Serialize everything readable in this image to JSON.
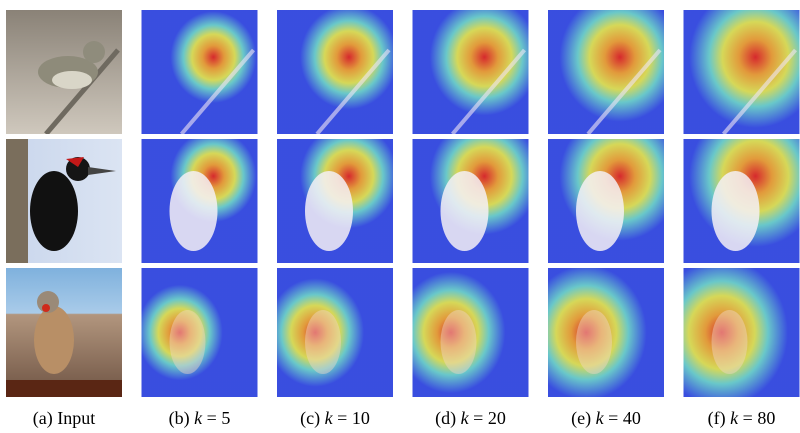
{
  "figure": {
    "columns": [
      {
        "label": "(a)",
        "text": "Input"
      },
      {
        "label": "(b)",
        "symbol": "k",
        "relation": "=",
        "value": 5
      },
      {
        "label": "(c)",
        "symbol": "k",
        "relation": "=",
        "value": 10
      },
      {
        "label": "(d)",
        "symbol": "k",
        "relation": "=",
        "value": 20
      },
      {
        "label": "(e)",
        "symbol": "k",
        "relation": "=",
        "value": 40
      },
      {
        "label": "(f)",
        "symbol": "k",
        "relation": "=",
        "value": 80
      }
    ]
  }
}
